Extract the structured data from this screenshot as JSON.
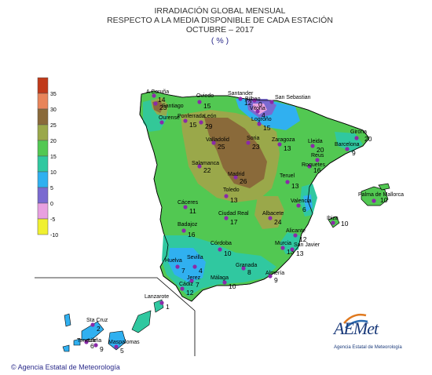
{
  "title": {
    "line1": "IRRADIACIÓN GLOBAL MENSUAL",
    "line2": "RESPECTO A LA MEDIA DISPONIBLE DE CADA ESTACIÓN",
    "line3": "OCTUBRE – 2017",
    "line4": "( % )"
  },
  "legend": {
    "bins": [
      {
        "label": "35",
        "color": "#c03a1a"
      },
      {
        "label": "30",
        "color": "#e8845a"
      },
      {
        "label": "25",
        "color": "#8a6a3a"
      },
      {
        "label": "20",
        "color": "#9aa84a"
      },
      {
        "label": "15",
        "color": "#52c852"
      },
      {
        "label": "10",
        "color": "#30c8a0"
      },
      {
        "label": "5",
        "color": "#30b0f0"
      },
      {
        "label": "0",
        "color": "#7a6ad0"
      },
      {
        "label": "-5",
        "color": "#e8a0e0"
      },
      {
        "label": "-10",
        "color": "#f0f030"
      }
    ],
    "bottom_label": "-10"
  },
  "stations": [
    {
      "name": "A Coruña",
      "value": "14"
    },
    {
      "name": "Santiago",
      "value": "23"
    },
    {
      "name": "Ourense",
      "value": ""
    },
    {
      "name": "Oviedo",
      "value": "15"
    },
    {
      "name": "Santander",
      "value": "12"
    },
    {
      "name": "Bilbao",
      "value": "0"
    },
    {
      "name": "San Sebastian",
      "value": ""
    },
    {
      "name": "Ponferrada",
      "value": "15"
    },
    {
      "name": "León",
      "value": "29"
    },
    {
      "name": "Vitoria",
      "value": "4"
    },
    {
      "name": "Logroño",
      "value": "15"
    },
    {
      "name": "Soria",
      "value": "23"
    },
    {
      "name": "Zaragoza",
      "value": "13"
    },
    {
      "name": "Lleida",
      "value": "20"
    },
    {
      "name": "Girona",
      "value": "20"
    },
    {
      "name": "Barcelona",
      "value": "9"
    },
    {
      "name": "Valladolid",
      "value": "25"
    },
    {
      "name": "Salamanca",
      "value": "22"
    },
    {
      "name": "Madrid",
      "value": "26"
    },
    {
      "name": "Reus",
      "value": ""
    },
    {
      "name": "Roquetes",
      "value": "16"
    },
    {
      "name": "Teruel",
      "value": "13"
    },
    {
      "name": "Toledo",
      "value": "13"
    },
    {
      "name": "Cáceres",
      "value": "11"
    },
    {
      "name": "Ciudad Real",
      "value": "17"
    },
    {
      "name": "Albacete",
      "value": "24"
    },
    {
      "name": "Valencia",
      "value": "6"
    },
    {
      "name": "Palma de Mallorca",
      "value": "10"
    },
    {
      "name": "Ibiza",
      "value": "10"
    },
    {
      "name": "Badajoz",
      "value": "16"
    },
    {
      "name": "Córdoba",
      "value": "10"
    },
    {
      "name": "Alicante",
      "value": "12"
    },
    {
      "name": "Murcia",
      "value": "13"
    },
    {
      "name": "San Javier",
      "value": "13"
    },
    {
      "name": "Huelva",
      "value": "7"
    },
    {
      "name": "Sevilla",
      "value": "4"
    },
    {
      "name": "Granada",
      "value": "8"
    },
    {
      "name": "Almería",
      "value": "9"
    },
    {
      "name": "Jerez",
      "value": "7"
    },
    {
      "name": "Málaga",
      "value": "10"
    },
    {
      "name": "Cádiz",
      "value": "12"
    },
    {
      "name": "Lanzarote",
      "value": "1"
    },
    {
      "name": "Sta Cruz",
      "value": "2"
    },
    {
      "name": "Tenerife",
      "value": "6"
    },
    {
      "name": "Izaña",
      "value": "9"
    },
    {
      "name": "Maspalomas",
      "value": "5"
    }
  ],
  "credit": "© Agencia Estatal de Meteorología",
  "logo": {
    "text": "AEMet",
    "subtitle": "Agencia Estatal de Meteorología"
  },
  "colors": {
    "station_dot": "#8a2aa8",
    "coast": "#000000"
  }
}
